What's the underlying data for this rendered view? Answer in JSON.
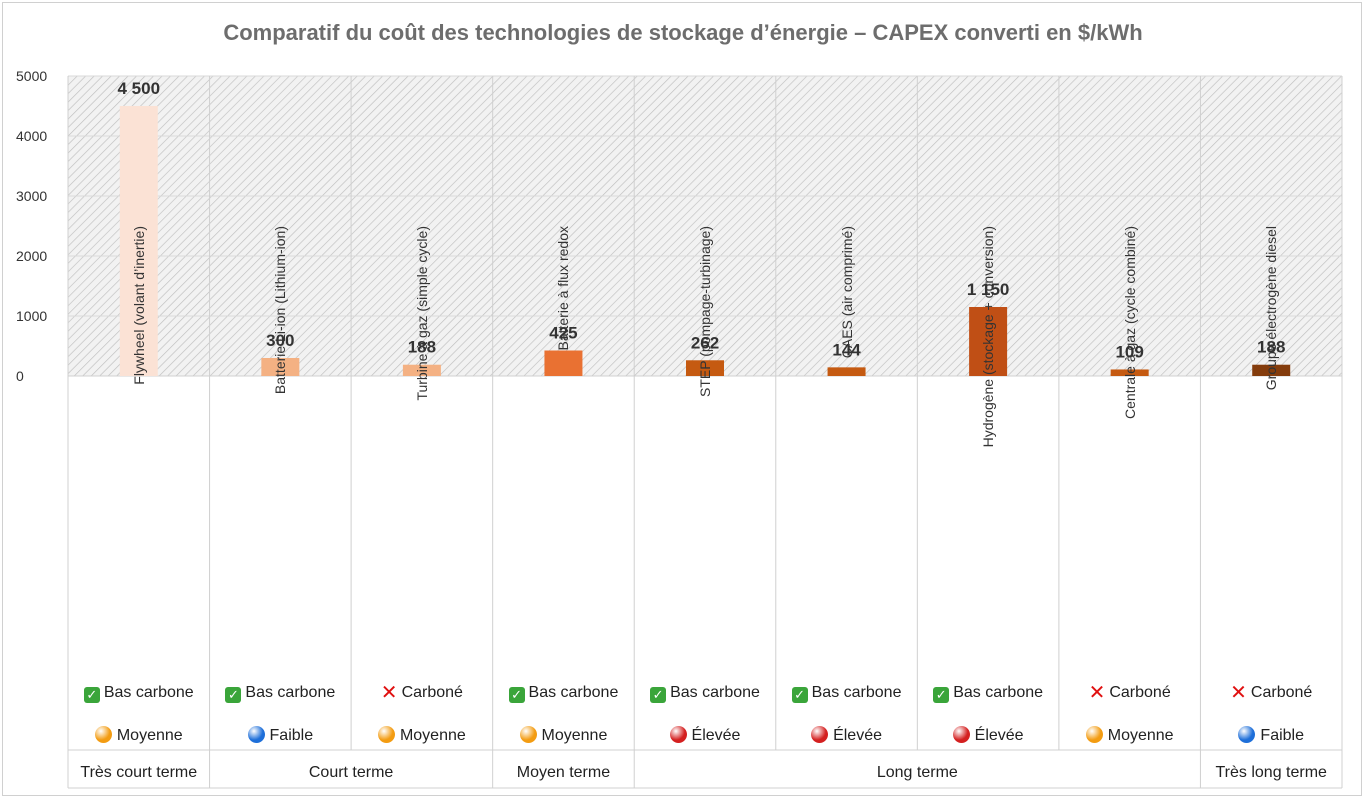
{
  "chart_data": {
    "type": "bar",
    "title": "Comparatif du coût des technologies de stockage d’énergie – CAPEX converti en $/kWh",
    "ylim": [
      0,
      5000
    ],
    "yticks": [
      "0",
      "1000",
      "2000",
      "3000",
      "4000",
      "5000"
    ],
    "categories": [
      "Flywheel (volant d’inertie)",
      "Batterie Li-ion (Lithium-ion)",
      "Turbine à gaz (simple cycle)",
      "Batterie à flux redox",
      "STEP (pompage-turbinage)",
      "CAES (air comprimé)",
      "Hydrogène (stockage + conversion)",
      "Centrale à gaz (cycle combiné)",
      "Groupe électrogène diesel"
    ],
    "values": [
      4500,
      300,
      188,
      425,
      262,
      144,
      1150,
      109,
      188
    ],
    "value_labels": [
      "4 500",
      "300",
      "188",
      "425",
      "262",
      "144",
      "1 150",
      "109",
      "188"
    ],
    "bar_colors": [
      "#fbe2d5",
      "#f4b183",
      "#f4b183",
      "#e97132",
      "#c55a11",
      "#c55a11",
      "#c04f15",
      "#c55a11",
      "#843c0c"
    ],
    "carbon": [
      {
        "icon": "check",
        "label": "Bas carbone"
      },
      {
        "icon": "check",
        "label": "Bas carbone"
      },
      {
        "icon": "cross",
        "label": "Carboné"
      },
      {
        "icon": "check",
        "label": "Bas carbone"
      },
      {
        "icon": "check",
        "label": "Bas carbone"
      },
      {
        "icon": "check",
        "label": "Bas carbone"
      },
      {
        "icon": "check",
        "label": "Bas carbone"
      },
      {
        "icon": "cross",
        "label": "Carboné"
      },
      {
        "icon": "cross",
        "label": "Carboné"
      }
    ],
    "maturity": [
      {
        "color": "#f39c12",
        "label": "Moyenne"
      },
      {
        "color": "#1e6fd9",
        "label": "Faible"
      },
      {
        "color": "#f39c12",
        "label": "Moyenne"
      },
      {
        "color": "#f39c12",
        "label": "Moyenne"
      },
      {
        "color": "#d42020",
        "label": "Élevée"
      },
      {
        "color": "#d42020",
        "label": "Élevée"
      },
      {
        "color": "#d42020",
        "label": "Élevée"
      },
      {
        "color": "#f39c12",
        "label": "Moyenne"
      },
      {
        "color": "#1e6fd9",
        "label": "Faible"
      }
    ],
    "groups": [
      {
        "label": "Très court terme",
        "span": 1
      },
      {
        "label": "Court terme",
        "span": 2
      },
      {
        "label": "Moyen terme",
        "span": 1
      },
      {
        "label": "Long terme",
        "span": 4
      },
      {
        "label": "Très long terme",
        "span": 1
      }
    ]
  }
}
